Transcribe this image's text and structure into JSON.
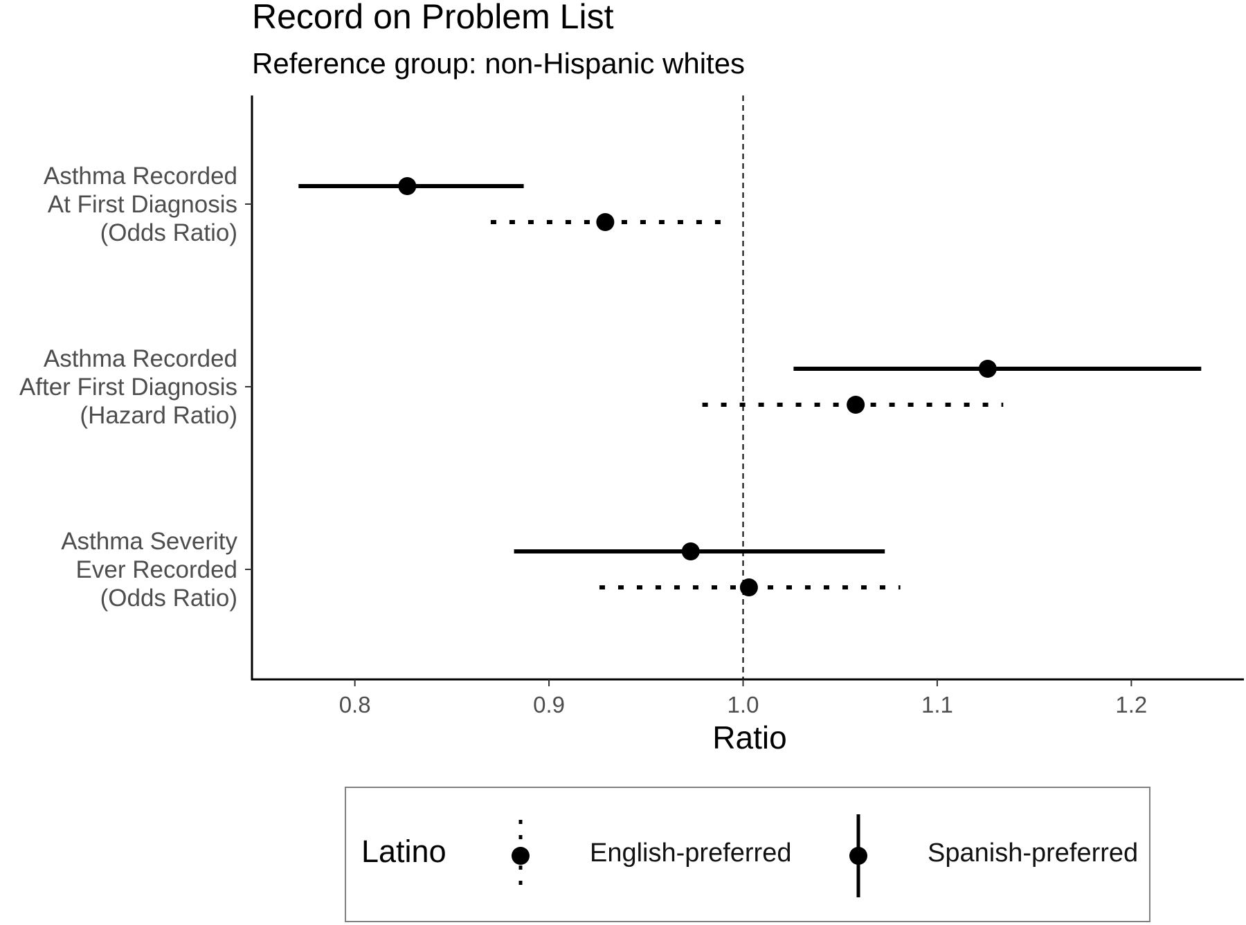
{
  "chart_data": {
    "type": "forest",
    "title": "Record on Problem List",
    "subtitle": "Reference group: non-Hispanic whites",
    "xlabel": "Ratio",
    "xlim": [
      0.747,
      1.258
    ],
    "x_ticks": [
      "0.8",
      "0.9",
      "1.0",
      "1.1",
      "1.2"
    ],
    "x_tick_values": [
      0.8,
      0.9,
      1.0,
      1.1,
      1.2
    ],
    "reference_line": 1.0,
    "categories": [
      [
        "Asthma Recorded",
        "At First Diagnosis",
        "(Odds Ratio)"
      ],
      [
        "Asthma Recorded",
        "After First Diagnosis",
        "(Hazard Ratio)"
      ],
      [
        "Asthma Severity",
        "Ever Recorded",
        "(Odds Ratio)"
      ]
    ],
    "series": [
      {
        "name": "Spanish-preferred",
        "line_style": "solid",
        "estimates": [
          0.827,
          1.126,
          0.973
        ],
        "lower": [
          0.771,
          1.026,
          0.882
        ],
        "upper": [
          0.887,
          1.236,
          1.073
        ]
      },
      {
        "name": "English-preferred",
        "line_style": "dotted",
        "estimates": [
          0.929,
          1.058,
          1.003
        ],
        "lower": [
          0.87,
          0.979,
          0.926
        ],
        "upper": [
          0.99,
          1.134,
          1.081
        ]
      }
    ],
    "legend": {
      "title": "Latino",
      "position": "bottom",
      "items": [
        "English-preferred",
        "Spanish-preferred"
      ]
    },
    "grid": false
  },
  "colors": {
    "ink": "#000000",
    "axis_text": "#4d4d4d",
    "legend_border": "#808080"
  }
}
